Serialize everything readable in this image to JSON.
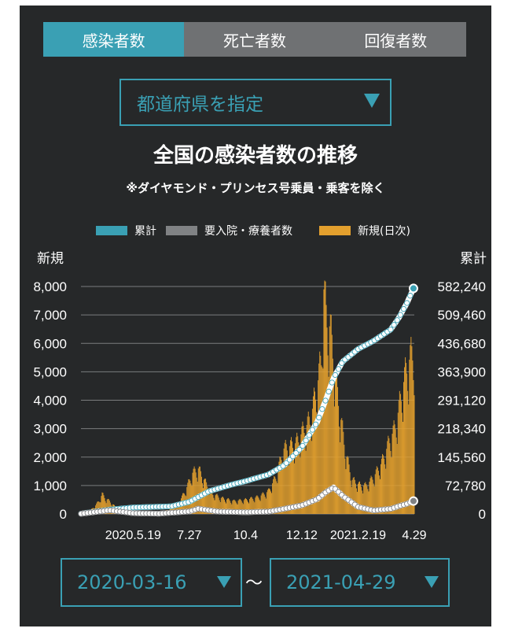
{
  "tabs": [
    {
      "label": "感染者数",
      "active": true
    },
    {
      "label": "死亡者数",
      "active": false
    },
    {
      "label": "回復者数",
      "active": false
    }
  ],
  "prefecture_select": {
    "value": "都道府県を指定"
  },
  "date_range": {
    "start": "2020-03-16",
    "end": "2021-04-29",
    "separator": "〜"
  },
  "colors": {
    "accent": "#3aa0b4",
    "cumulative": "#3aa0b4",
    "hospitalized": "#808284",
    "new": "#e3a02e"
  },
  "chart_data": {
    "type": "bar",
    "title": "全国の感染者数の推移",
    "subtitle": "※ダイヤモンド・プリンセス号乗員・乗客を除く",
    "legend_position": "top",
    "legend": [
      {
        "label": "累計",
        "color": "#3aa0b4"
      },
      {
        "label": "要入院・療養者数",
        "color": "#808284"
      },
      {
        "label": "新規(日次)",
        "color": "#e3a02e"
      }
    ],
    "y_left_label": "新規",
    "y_right_label": "累計",
    "y_left_ticks": [
      "8,000",
      "7,000",
      "6,000",
      "5,000",
      "4,000",
      "3,000",
      "2,000",
      "1,000",
      "0"
    ],
    "y_right_ticks": [
      "582,240",
      "509,460",
      "436,680",
      "363,900",
      "291,120",
      "218,340",
      "145,560",
      "72,780",
      "0"
    ],
    "y_left_range": [
      0,
      8000
    ],
    "y_right_range": [
      0,
      582240
    ],
    "x_range": [
      "2020-03-16",
      "2021-04-29"
    ],
    "x_ticks": [
      {
        "label": "2020.5.19",
        "date": "2020-05-19"
      },
      {
        "label": "7.27",
        "date": "2020-07-27"
      },
      {
        "label": "10.4",
        "date": "2020-10-04"
      },
      {
        "label": "12.12",
        "date": "2020-12-12"
      },
      {
        "label": "2021.2.19",
        "date": "2021-02-19"
      },
      {
        "label": "4.29",
        "date": "2021-04-29"
      }
    ],
    "grid": true,
    "series": [
      {
        "name": "新規(日次)",
        "type": "bar",
        "axis": "left",
        "points": [
          [
            "2020-03-16",
            30
          ],
          [
            "2020-03-26",
            80
          ],
          [
            "2020-04-03",
            300
          ],
          [
            "2020-04-08",
            500
          ],
          [
            "2020-04-11",
            700
          ],
          [
            "2020-04-15",
            550
          ],
          [
            "2020-04-20",
            450
          ],
          [
            "2020-04-27",
            250
          ],
          [
            "2020-05-05",
            100
          ],
          [
            "2020-05-15",
            40
          ],
          [
            "2020-05-25",
            30
          ],
          [
            "2020-06-10",
            40
          ],
          [
            "2020-06-25",
            80
          ],
          [
            "2020-07-05",
            200
          ],
          [
            "2020-07-15",
            450
          ],
          [
            "2020-07-22",
            800
          ],
          [
            "2020-07-31",
            1450
          ],
          [
            "2020-08-07",
            1600
          ],
          [
            "2020-08-15",
            1150
          ],
          [
            "2020-08-25",
            700
          ],
          [
            "2020-09-05",
            550
          ],
          [
            "2020-09-20",
            450
          ],
          [
            "2020-10-05",
            500
          ],
          [
            "2020-10-20",
            600
          ],
          [
            "2020-11-01",
            800
          ],
          [
            "2020-11-10",
            1300
          ],
          [
            "2020-11-20",
            2300
          ],
          [
            "2020-11-28",
            2400
          ],
          [
            "2020-12-05",
            2500
          ],
          [
            "2020-12-15",
            3000
          ],
          [
            "2020-12-22",
            3300
          ],
          [
            "2020-12-31",
            4500
          ],
          [
            "2021-01-05",
            5500
          ],
          [
            "2021-01-08",
            7900
          ],
          [
            "2021-01-11",
            7000
          ],
          [
            "2021-01-16",
            6500
          ],
          [
            "2021-01-22",
            5000
          ],
          [
            "2021-01-28",
            3500
          ],
          [
            "2021-02-05",
            2000
          ],
          [
            "2021-02-12",
            1200
          ],
          [
            "2021-02-22",
            1000
          ],
          [
            "2021-03-01",
            1000
          ],
          [
            "2021-03-10",
            1300
          ],
          [
            "2021-03-20",
            1800
          ],
          [
            "2021-03-31",
            2700
          ],
          [
            "2021-04-05",
            3000
          ],
          [
            "2021-04-10",
            3700
          ],
          [
            "2021-04-15",
            4500
          ],
          [
            "2021-04-20",
            5200
          ],
          [
            "2021-04-24",
            5500
          ],
          [
            "2021-04-29",
            5800
          ]
        ]
      },
      {
        "name": "累計",
        "type": "line",
        "axis": "right",
        "points": [
          [
            "2020-03-16",
            800
          ],
          [
            "2020-04-20",
            11000
          ],
          [
            "2020-05-19",
            16500
          ],
          [
            "2020-07-05",
            19500
          ],
          [
            "2020-07-27",
            31000
          ],
          [
            "2020-08-20",
            58000
          ],
          [
            "2020-09-15",
            74000
          ],
          [
            "2020-10-04",
            84000
          ],
          [
            "2020-11-01",
            101000
          ],
          [
            "2020-11-20",
            124000
          ],
          [
            "2020-12-12",
            171000
          ],
          [
            "2020-12-31",
            236000
          ],
          [
            "2021-01-10",
            290000
          ],
          [
            "2021-01-20",
            348000
          ],
          [
            "2021-01-31",
            390000
          ],
          [
            "2021-02-19",
            422000
          ],
          [
            "2021-03-10",
            443000
          ],
          [
            "2021-03-31",
            472000
          ],
          [
            "2021-04-10",
            502000
          ],
          [
            "2021-04-20",
            540000
          ],
          [
            "2021-04-29",
            582000
          ]
        ]
      },
      {
        "name": "要入院・療養者数",
        "type": "line",
        "axis": "right",
        "points": [
          [
            "2020-03-16",
            500
          ],
          [
            "2020-04-20",
            9500
          ],
          [
            "2020-05-19",
            2000
          ],
          [
            "2020-06-20",
            800
          ],
          [
            "2020-07-27",
            6500
          ],
          [
            "2020-08-07",
            13500
          ],
          [
            "2020-09-01",
            6000
          ],
          [
            "2020-10-04",
            4500
          ],
          [
            "2020-11-01",
            6000
          ],
          [
            "2020-11-20",
            13000
          ],
          [
            "2020-12-12",
            22000
          ],
          [
            "2020-12-31",
            38000
          ],
          [
            "2021-01-10",
            55000
          ],
          [
            "2021-01-20",
            68000
          ],
          [
            "2021-02-01",
            45000
          ],
          [
            "2021-02-19",
            18000
          ],
          [
            "2021-03-10",
            9000
          ],
          [
            "2021-03-31",
            13000
          ],
          [
            "2021-04-10",
            20000
          ],
          [
            "2021-04-20",
            26000
          ],
          [
            "2021-04-29",
            34000
          ]
        ]
      }
    ]
  }
}
